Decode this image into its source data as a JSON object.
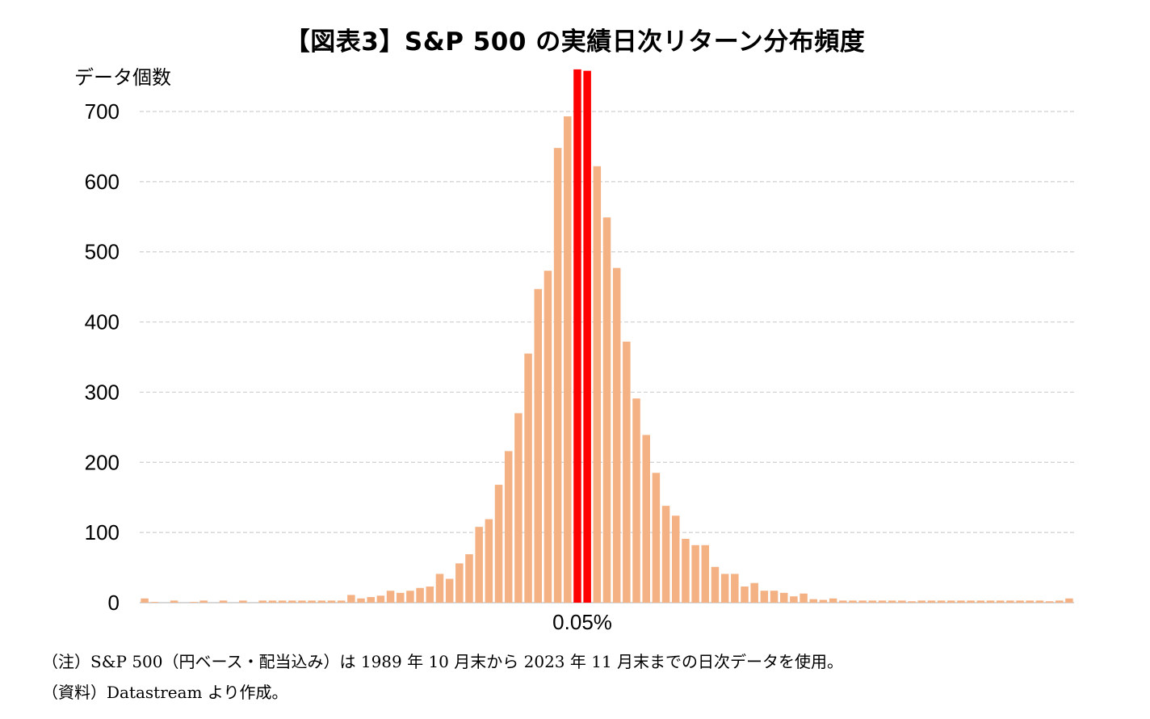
{
  "notes": {
    "note": "（注）S&P 500（円ベース・配当込み）は 1989 年 10 月末から 2023 年 11 月末までの日次データを使用。",
    "source": "（資料）Datastream より作成。"
  },
  "colors": {
    "bar": "#f4b183",
    "highlight": "#ff0000",
    "grid": "#cfcfcf"
  },
  "chart_data": {
    "type": "bar",
    "title": "【図表3】S&P 500 の実績日次リターン分布頻度",
    "ylabel": "データ個数",
    "xlabel": "",
    "ylim": [
      0,
      700
    ],
    "yticks": [
      0,
      100,
      200,
      300,
      400,
      500,
      600,
      700
    ],
    "grid": true,
    "x_tick_labels": [
      {
        "bin": 45,
        "label": "0.05%"
      }
    ],
    "highlight_bins": [
      44,
      45
    ],
    "values": [
      6,
      1,
      0,
      3,
      0,
      1,
      3,
      0,
      3,
      0,
      3,
      0,
      3,
      3,
      3,
      3,
      3,
      3,
      3,
      3,
      3,
      11,
      6,
      8,
      10,
      17,
      14,
      17,
      21,
      23,
      41,
      34,
      56,
      69,
      108,
      119,
      168,
      216,
      270,
      355,
      447,
      473,
      648,
      693,
      760,
      758,
      622,
      549,
      477,
      372,
      291,
      239,
      185,
      138,
      124,
      91,
      82,
      82,
      51,
      41,
      41,
      23,
      28,
      17,
      17,
      14,
      9,
      13,
      5,
      4,
      6,
      3,
      3,
      3,
      3,
      3,
      3,
      3,
      2,
      3,
      3,
      3,
      3,
      3,
      3,
      3,
      3,
      3,
      3,
      3,
      3,
      3,
      2,
      3,
      6
    ]
  }
}
